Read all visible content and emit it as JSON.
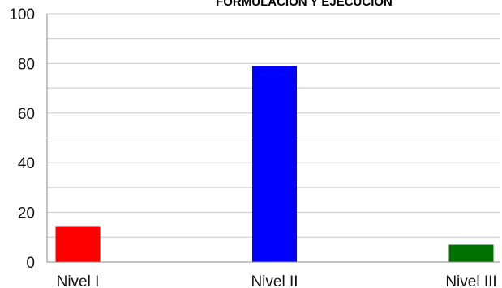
{
  "chart_data": {
    "type": "bar",
    "title": "FORMULACIÓN Y EJECUCIÓN",
    "categories": [
      "Nivel I",
      "Nivel II",
      "Nivel III"
    ],
    "values": [
      14.5,
      79,
      7
    ],
    "colors": [
      "#ff0000",
      "#0000ff",
      "#007000"
    ],
    "ylim": [
      0,
      100
    ],
    "yticks": [
      0,
      20,
      40,
      60,
      80,
      100
    ],
    "minor_grid_step": 10,
    "grid": true,
    "legend": "none",
    "xlabel": "",
    "ylabel": ""
  }
}
